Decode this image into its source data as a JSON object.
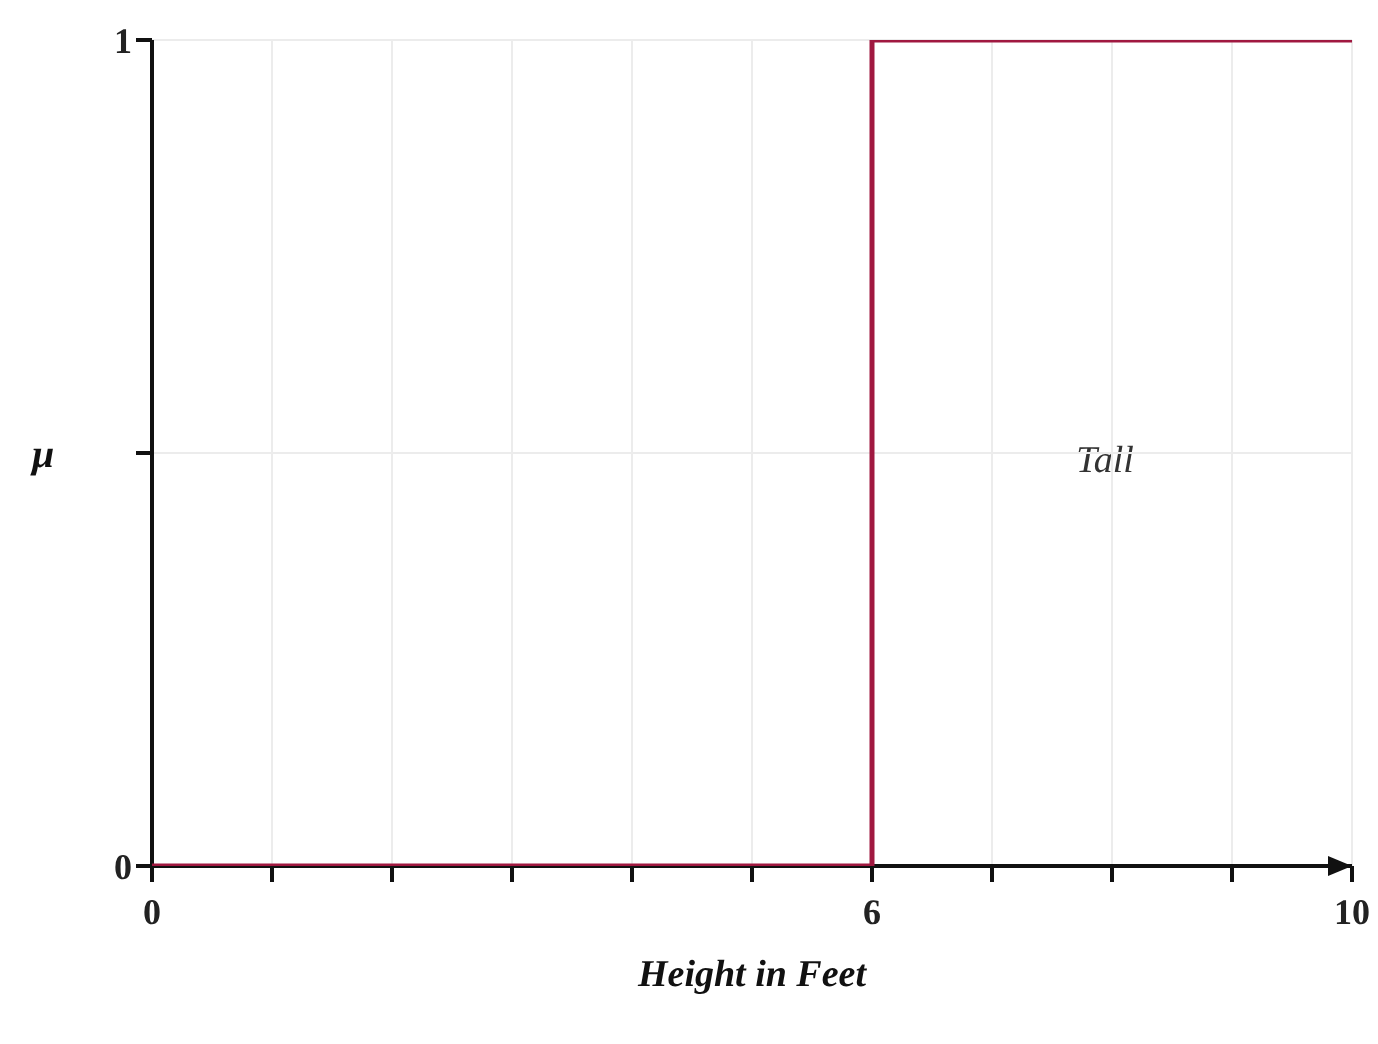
{
  "chart_data": {
    "type": "step",
    "xlabel": "Height in Feet",
    "ylabel": "μ",
    "x": [
      0,
      6,
      10
    ],
    "series": [
      {
        "color": "#a01840",
        "values": [
          0,
          1,
          1
        ]
      }
    ],
    "xlim": [
      0,
      10
    ],
    "xticks": [
      0,
      {
        "value": 1,
        "label": null
      },
      {
        "value": 2,
        "label": null
      },
      {
        "value": 3,
        "label": null
      },
      {
        "value": 4,
        "label": null
      },
      {
        "value": 5,
        "label": null
      },
      6,
      {
        "value": 7,
        "label": null
      },
      {
        "value": 8,
        "label": null
      },
      {
        "value": 9,
        "label": null
      },
      10
    ],
    "ylim": [
      0,
      1
    ],
    "yticks": [
      0,
      {
        "value": 0.5,
        "label": null
      },
      1
    ],
    "grid": true,
    "marker": "none",
    "line_style": "solid",
    "annotations": [
      "Tall"
    ]
  }
}
